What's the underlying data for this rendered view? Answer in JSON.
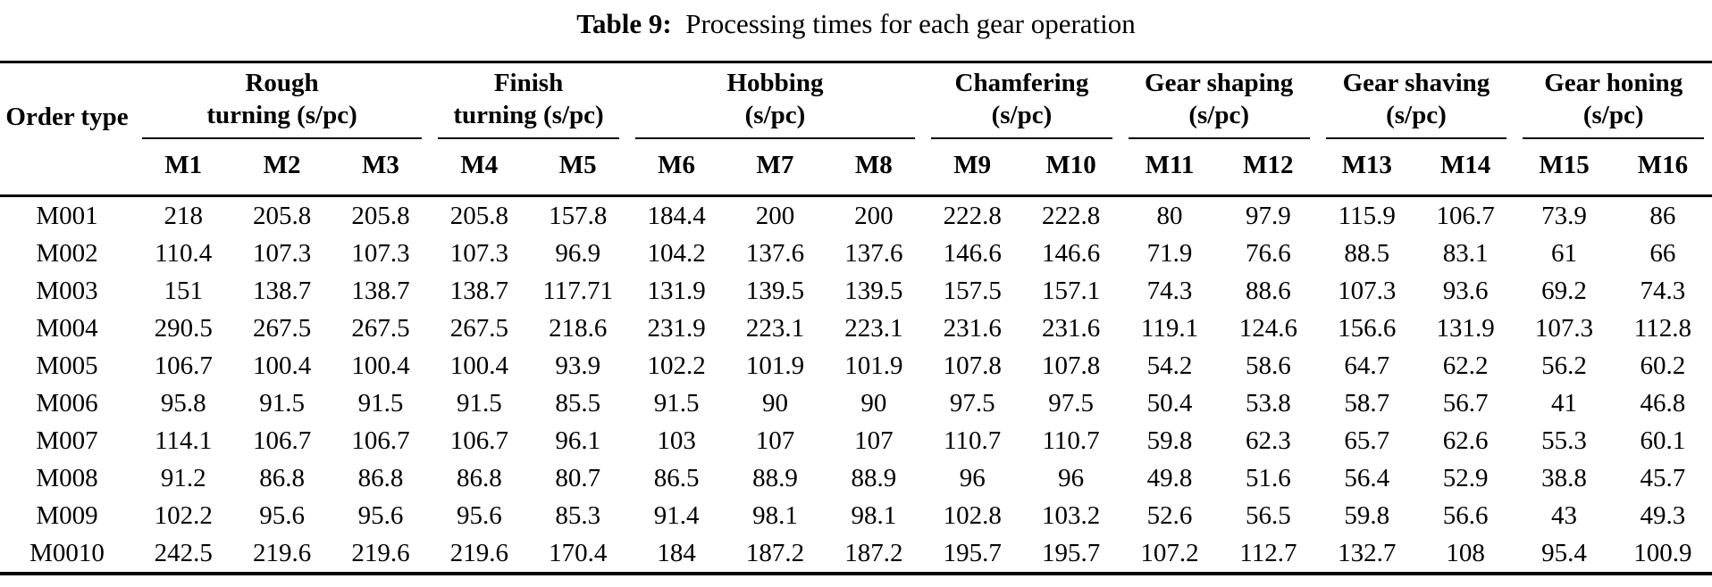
{
  "title": {
    "label": "Table 9:",
    "text": "Processing times for each gear operation"
  },
  "table": {
    "order_type_header": "Order type",
    "groups": [
      {
        "name": "rough-turning",
        "line1": "Rough",
        "line2": "turning (s/pc)",
        "cols": [
          "M1",
          "M2",
          "M3"
        ]
      },
      {
        "name": "finish-turning",
        "line1": "Finish",
        "line2": "turning (s/pc)",
        "cols": [
          "M4",
          "M5"
        ]
      },
      {
        "name": "hobbing",
        "line1": "Hobbing",
        "line2": "(s/pc)",
        "cols": [
          "M6",
          "M7",
          "M8"
        ]
      },
      {
        "name": "chamfering",
        "line1": "Chamfering",
        "line2": "(s/pc)",
        "cols": [
          "M9",
          "M10"
        ]
      },
      {
        "name": "gear-shaping",
        "line1": "Gear shaping",
        "line2": "(s/pc)",
        "cols": [
          "M11",
          "M12"
        ]
      },
      {
        "name": "gear-shaving",
        "line1": "Gear shaving",
        "line2": "(s/pc)",
        "cols": [
          "M13",
          "M14"
        ]
      },
      {
        "name": "gear-honing",
        "line1": "Gear honing",
        "line2": "(s/pc)",
        "cols": [
          "M15",
          "M16"
        ]
      }
    ],
    "rows": [
      {
        "order": "M001",
        "values": [
          "218",
          "205.8",
          "205.8",
          "205.8",
          "157.8",
          "184.4",
          "200",
          "200",
          "222.8",
          "222.8",
          "80",
          "97.9",
          "115.9",
          "106.7",
          "73.9",
          "86"
        ]
      },
      {
        "order": "M002",
        "values": [
          "110.4",
          "107.3",
          "107.3",
          "107.3",
          "96.9",
          "104.2",
          "137.6",
          "137.6",
          "146.6",
          "146.6",
          "71.9",
          "76.6",
          "88.5",
          "83.1",
          "61",
          "66"
        ]
      },
      {
        "order": "M003",
        "values": [
          "151",
          "138.7",
          "138.7",
          "138.7",
          "117.71",
          "131.9",
          "139.5",
          "139.5",
          "157.5",
          "157.1",
          "74.3",
          "88.6",
          "107.3",
          "93.6",
          "69.2",
          "74.3"
        ]
      },
      {
        "order": "M004",
        "values": [
          "290.5",
          "267.5",
          "267.5",
          "267.5",
          "218.6",
          "231.9",
          "223.1",
          "223.1",
          "231.6",
          "231.6",
          "119.1",
          "124.6",
          "156.6",
          "131.9",
          "107.3",
          "112.8"
        ]
      },
      {
        "order": "M005",
        "values": [
          "106.7",
          "100.4",
          "100.4",
          "100.4",
          "93.9",
          "102.2",
          "101.9",
          "101.9",
          "107.8",
          "107.8",
          "54.2",
          "58.6",
          "64.7",
          "62.2",
          "56.2",
          "60.2"
        ]
      },
      {
        "order": "M006",
        "values": [
          "95.8",
          "91.5",
          "91.5",
          "91.5",
          "85.5",
          "91.5",
          "90",
          "90",
          "97.5",
          "97.5",
          "50.4",
          "53.8",
          "58.7",
          "56.7",
          "41",
          "46.8"
        ]
      },
      {
        "order": "M007",
        "values": [
          "114.1",
          "106.7",
          "106.7",
          "106.7",
          "96.1",
          "103",
          "107",
          "107",
          "110.7",
          "110.7",
          "59.8",
          "62.3",
          "65.7",
          "62.6",
          "55.3",
          "60.1"
        ]
      },
      {
        "order": "M008",
        "values": [
          "91.2",
          "86.8",
          "86.8",
          "86.8",
          "80.7",
          "86.5",
          "88.9",
          "88.9",
          "96",
          "96",
          "49.8",
          "51.6",
          "56.4",
          "52.9",
          "38.8",
          "45.7"
        ]
      },
      {
        "order": "M009",
        "values": [
          "102.2",
          "95.6",
          "95.6",
          "95.6",
          "85.3",
          "91.4",
          "98.1",
          "98.1",
          "102.8",
          "103.2",
          "52.6",
          "56.5",
          "59.8",
          "56.6",
          "43",
          "49.3"
        ]
      },
      {
        "order": "M0010",
        "values": [
          "242.5",
          "219.6",
          "219.6",
          "219.6",
          "170.4",
          "184",
          "187.2",
          "187.2",
          "195.7",
          "195.7",
          "107.2",
          "112.7",
          "132.7",
          "108",
          "95.4",
          "100.9"
        ]
      }
    ]
  },
  "colors": {
    "text": "#000000",
    "background": "#ffffff",
    "rule": "#000000"
  }
}
